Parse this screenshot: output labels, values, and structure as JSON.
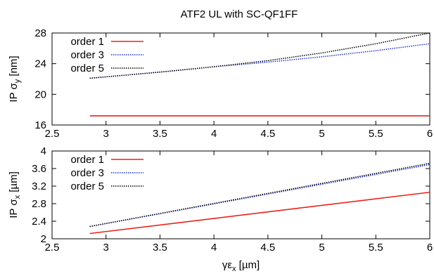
{
  "title": "ATF2 UL with SC-QF1FF",
  "chart_data": [
    {
      "type": "line",
      "ylabel": {
        "prefix": "IP ",
        "sym": "σ",
        "sub": "y",
        "unit": " [nm]"
      },
      "xlim": [
        2.5,
        6
      ],
      "ylim": [
        16,
        28
      ],
      "xticks": [
        "2.5",
        "3",
        "3.5",
        "4",
        "4.5",
        "5",
        "5.5",
        "6"
      ],
      "yticks": [
        "16",
        "20",
        "24",
        "28"
      ],
      "legend_position": "top-left",
      "series": [
        {
          "name": "order 1",
          "color": "#e8221b",
          "style": "solid",
          "x": [
            2.85,
            6
          ],
          "y": [
            17.2,
            17.2
          ]
        },
        {
          "name": "order 3",
          "color": "#1f2de0",
          "style": "dotted",
          "x": [
            2.85,
            3.5,
            4,
            4.5,
            5,
            5.5,
            6
          ],
          "y": [
            22.1,
            22.9,
            23.6,
            24.2,
            24.9,
            25.7,
            26.6
          ]
        },
        {
          "name": "order 5",
          "color": "#000000",
          "style": "dotted",
          "x": [
            2.85,
            3.5,
            4,
            4.5,
            5,
            5.5,
            6
          ],
          "y": [
            22.1,
            22.9,
            23.6,
            24.4,
            25.4,
            26.6,
            28.0
          ]
        }
      ]
    },
    {
      "type": "line",
      "ylabel": {
        "prefix": "IP ",
        "sym": "σ",
        "sub": "x",
        "unit": " [µm]"
      },
      "xlabel": {
        "prefix": "",
        "sym": "γε",
        "sub": "x",
        "unit": " [µm]"
      },
      "xlim": [
        2.5,
        6
      ],
      "ylim": [
        2,
        4
      ],
      "xticks": [
        "2.5",
        "3",
        "3.5",
        "4",
        "4.5",
        "5",
        "5.5",
        "6"
      ],
      "yticks": [
        "2",
        "2.4",
        "2.8",
        "3.2",
        "3.6",
        "4"
      ],
      "legend_position": "top-left",
      "series": [
        {
          "name": "order 1",
          "color": "#e8221b",
          "style": "solid",
          "x": [
            2.85,
            6
          ],
          "y": [
            2.12,
            3.06
          ]
        },
        {
          "name": "order 3",
          "color": "#1f2de0",
          "style": "dotted",
          "x": [
            2.85,
            6
          ],
          "y": [
            2.28,
            3.69
          ]
        },
        {
          "name": "order 5",
          "color": "#000000",
          "style": "dotted",
          "x": [
            2.85,
            6
          ],
          "y": [
            2.28,
            3.72
          ]
        }
      ]
    }
  ]
}
